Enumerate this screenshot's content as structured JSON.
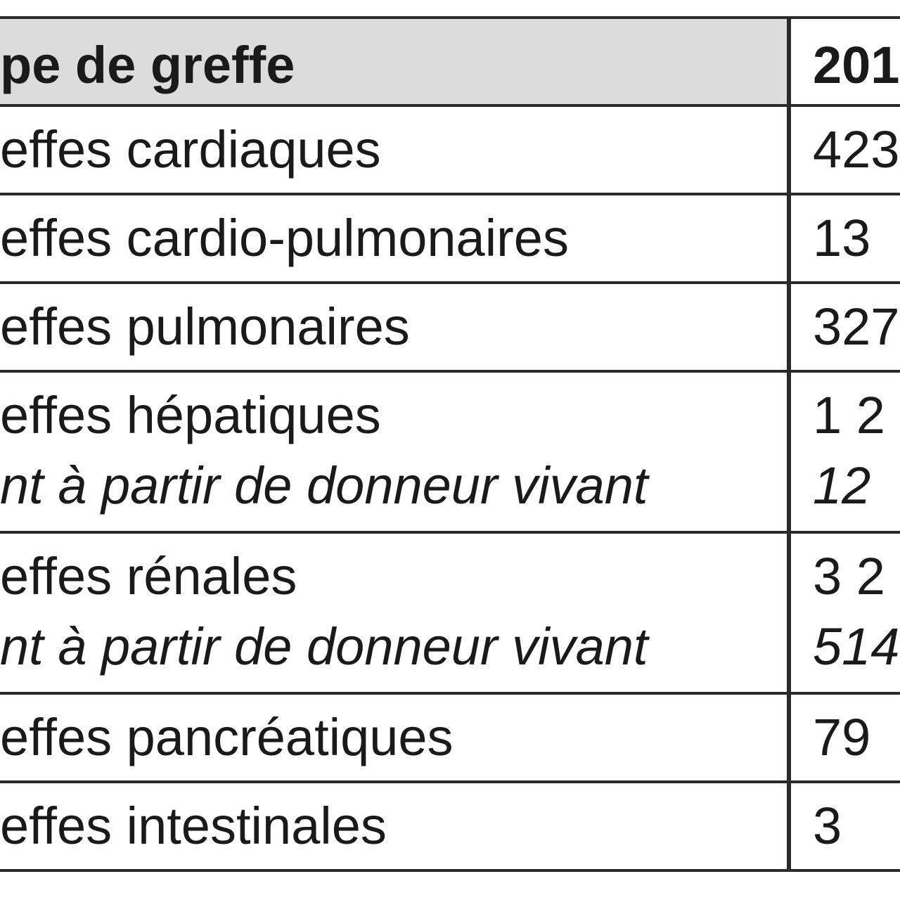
{
  "table": {
    "header": [
      "pe de greffe",
      "201"
    ],
    "rows": [
      {
        "label": "effes cardiaques",
        "value": "423"
      },
      {
        "label": "effes cardio-pulmonaires",
        "value": "13"
      },
      {
        "label": "effes pulmonaires",
        "value": "327"
      },
      {
        "label": "effes hépatiques",
        "value": "1 2",
        "sub_label": "nt à partir de donneur vivant",
        "sub_value": "12"
      },
      {
        "label": "effes rénales",
        "value": "3 2",
        "sub_label": "nt à partir de donneur vivant",
        "sub_value": "514"
      },
      {
        "label": "effes pancréatiques",
        "value": "79"
      },
      {
        "label": "effes intestinales",
        "value": "3"
      }
    ]
  }
}
